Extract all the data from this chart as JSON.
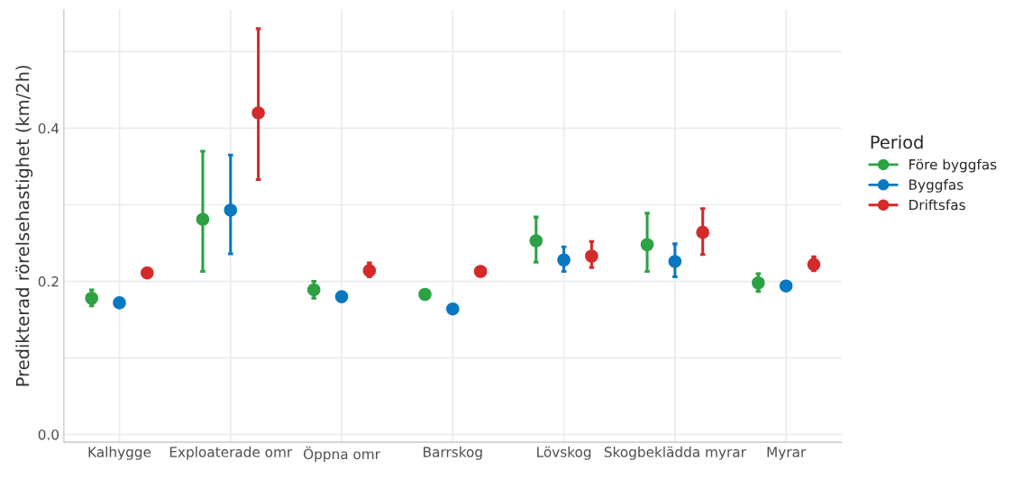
{
  "chart_data": {
    "type": "scatter",
    "ylabel": "Predikterad rörelsehastighet (km/2h)",
    "legend_title": "Period",
    "categories": [
      "Kalhygge",
      "Exploaterade omr",
      "Öppna omr",
      "Barrskog",
      "Lövskog",
      "Skogbeklädda myrar",
      "Myrar"
    ],
    "series": [
      {
        "name": "Före byggfas",
        "color": "#2ca243",
        "values": [
          0.178,
          0.281,
          0.189,
          0.183,
          0.253,
          0.248,
          0.198
        ],
        "errors": [
          [
            0.168,
            0.189
          ],
          [
            0.213,
            0.37
          ],
          [
            0.178,
            0.2
          ],
          [
            0.179,
            0.188
          ],
          [
            0.225,
            0.284
          ],
          [
            0.213,
            0.289
          ],
          [
            0.187,
            0.21
          ]
        ]
      },
      {
        "name": "Byggfas",
        "color": "#0a78c0",
        "values": [
          0.172,
          0.293,
          0.18,
          0.164,
          0.228,
          0.226,
          0.194
        ],
        "errors": [
          null,
          [
            0.236,
            0.365
          ],
          [
            0.174,
            0.186
          ],
          null,
          [
            0.213,
            0.245
          ],
          [
            0.206,
            0.249
          ],
          [
            0.189,
            0.198
          ]
        ]
      },
      {
        "name": "Driftsfas",
        "color": "#d42a2a",
        "values": [
          0.211,
          0.42,
          0.214,
          0.213,
          0.233,
          0.264,
          0.222
        ],
        "errors": [
          [
            0.205,
            0.217
          ],
          [
            0.333,
            0.53
          ],
          [
            0.206,
            0.224
          ],
          null,
          [
            0.218,
            0.252
          ],
          [
            0.235,
            0.295
          ],
          [
            0.214,
            0.232
          ]
        ]
      }
    ],
    "ylim": [
      -0.01,
      0.555
    ],
    "yticks": [
      {
        "value": 0.0,
        "label": "0.0"
      },
      {
        "value": 0.1,
        "label": null
      },
      {
        "value": 0.2,
        "label": "0.2"
      },
      {
        "value": 0.3,
        "label": null
      },
      {
        "value": 0.4,
        "label": "0.4"
      },
      {
        "value": 0.5,
        "label": null
      }
    ],
    "grid": true,
    "legend": "right",
    "marker": "circle"
  }
}
